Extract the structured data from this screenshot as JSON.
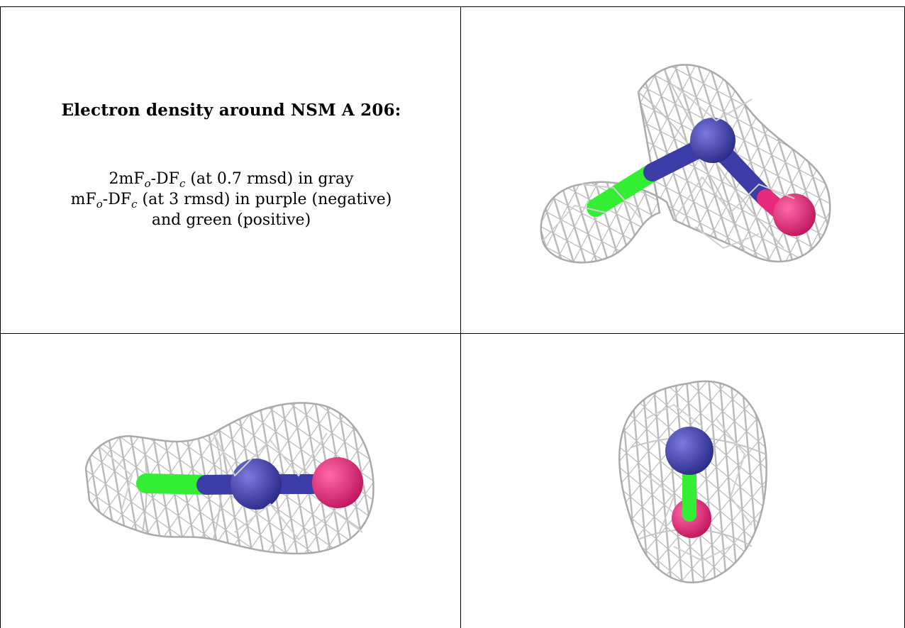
{
  "caption": {
    "title": "Electron density around NSM A 206:",
    "line1": {
      "pre": "2mF",
      "sub_o": "o",
      "mid": "-DF",
      "sub_c": "c",
      "post": " (at 0.7 rmsd) in gray"
    },
    "line2": {
      "pre": "mF",
      "sub_o": "o",
      "mid": "-DF",
      "sub_c": "c",
      "post": " (at 3 rmsd) in purple (negative)"
    },
    "line3": "and green (positive)"
  },
  "colors": {
    "mesh": "#c8c8c8",
    "mesh_stroke": "#9a9a9a",
    "nitrogen": "#3c3ca8",
    "carbon_green": "#33ee33",
    "pink": "#e8287a"
  },
  "panels": [
    {
      "view": "oblique"
    },
    {
      "view": "side"
    },
    {
      "view": "end-on"
    }
  ]
}
